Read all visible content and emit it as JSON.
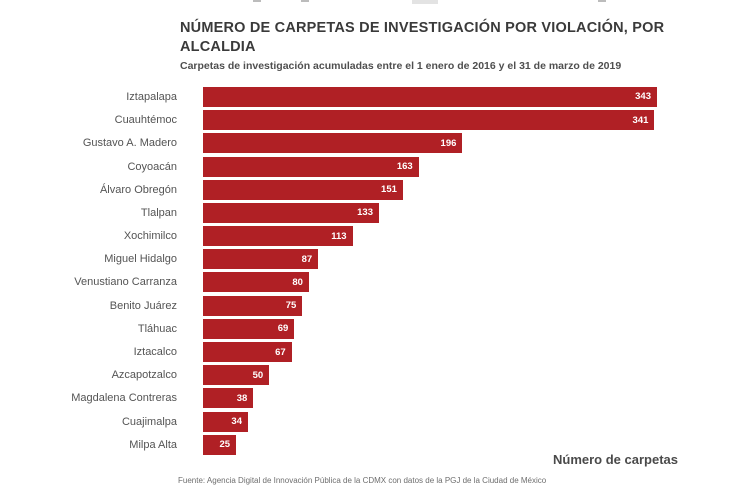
{
  "chart_data": {
    "type": "bar",
    "orientation": "horizontal",
    "title": "NÚMERO DE CARPETAS DE INVESTIGACIÓN POR VIOLACIÓN, POR ALCALDIA",
    "subtitle": "Carpetas de investigación acumuladas entre el 1 enero de 2016 y el 31 de marzo de 2019",
    "categories": [
      "Iztapalapa",
      "Cuauhtémoc",
      "Gustavo A. Madero",
      "Coyoacán",
      "Álvaro Obregón",
      "Tlalpan",
      "Xochimilco",
      "Miguel Hidalgo",
      "Venustiano Carranza",
      "Benito Juárez",
      "Tláhuac",
      "Iztacalco",
      "Azcapotzalco",
      "Magdalena Contreras",
      "Cuajimalpa",
      "Milpa Alta"
    ],
    "values": [
      343,
      341,
      196,
      163,
      151,
      133,
      113,
      87,
      80,
      75,
      69,
      67,
      50,
      38,
      34,
      25
    ],
    "xlabel": "Número de carpetas",
    "source": "Fuente: Agencia Digital de Innovación Pública de la CDMX con datos de la PGJ de la Ciudad de México",
    "xlim": [
      0,
      343
    ],
    "grid": false,
    "legend": "none",
    "value_labels": "inside-end",
    "colors": {
      "bar": "#b02025",
      "value_label": "#ffffff",
      "title": "#3a3a3a",
      "category_label": "#545454"
    }
  }
}
